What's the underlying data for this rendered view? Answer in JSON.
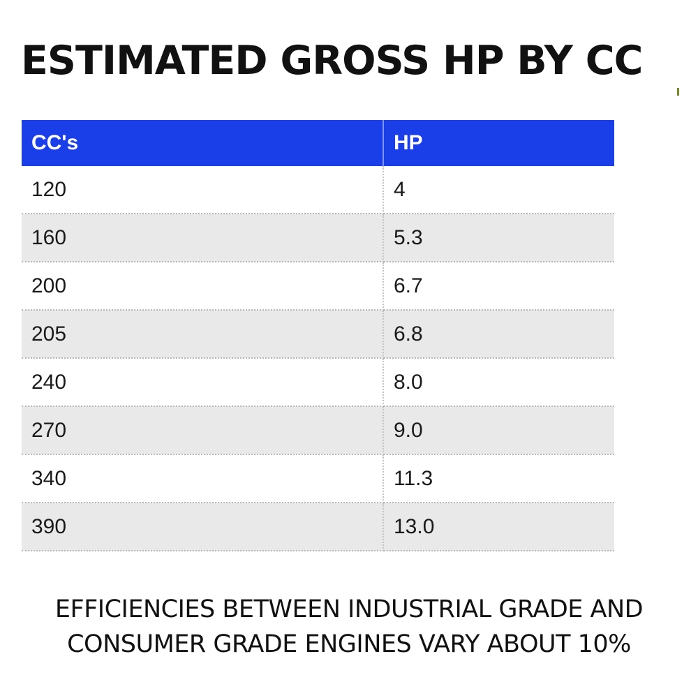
{
  "title": "ESTIMATED GROSS HP BY CC",
  "table": {
    "headers": [
      "CC's",
      "HP"
    ],
    "rows": [
      [
        "120",
        "4"
      ],
      [
        "160",
        "5.3"
      ],
      [
        "200",
        "6.7"
      ],
      [
        "205",
        "6.8"
      ],
      [
        "240",
        "8.0"
      ],
      [
        "270",
        "9.0"
      ],
      [
        "340",
        "11.3"
      ],
      [
        "390",
        "13.0"
      ]
    ]
  },
  "note": {
    "line1": "EFFICIENCIES BETWEEN INDUSTRIAL GRADE AND",
    "line2": "CONSUMER GRADE ENGINES VARY ABOUT 10%"
  },
  "colors": {
    "header_bg": "#1a3ee8",
    "header_text": "#ffffff",
    "stripe": "#e9e9e9"
  }
}
